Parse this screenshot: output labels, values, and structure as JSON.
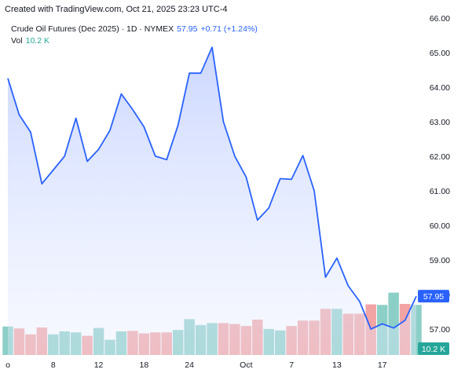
{
  "header": {
    "created_with": "Created with TradingView.com, Oct 21, 2025 23:23 UTC-4"
  },
  "legend": {
    "symbol": "Crude Oil Futures (Dec 2025) · 1D · NYMEX",
    "last": "57.95",
    "change": "+0.71 (+1.24%)",
    "vol_label": "Vol",
    "vol_value": "10.2 K"
  },
  "badges": {
    "price": "57.95",
    "volume": "10.2 K"
  },
  "colors": {
    "line": "#2962ff",
    "area_top": "#c9d5ff",
    "vol_up": "#8ccfc7",
    "vol_down": "#f2a3a3",
    "price_badge": "#2962ff",
    "vol_badge": "#26a69a"
  },
  "chart_data": {
    "type": "area",
    "y_axis": {
      "ticks": [
        "66.00",
        "65.00",
        "64.00",
        "63.00",
        "62.00",
        "61.00",
        "60.00",
        "59.00",
        "58.00",
        "57.00"
      ],
      "ylim": [
        56.25,
        66.2
      ]
    },
    "x_axis": {
      "ticks": [
        {
          "label": "o",
          "index": 0
        },
        {
          "label": "8",
          "index": 4
        },
        {
          "label": "12",
          "index": 8
        },
        {
          "label": "18",
          "index": 12
        },
        {
          "label": "24",
          "index": 16
        },
        {
          "label": "Oct",
          "index": 21
        },
        {
          "label": "7",
          "index": 25
        },
        {
          "label": "13",
          "index": 29
        },
        {
          "label": "17",
          "index": 33
        }
      ]
    },
    "price": [
      64.25,
      63.2,
      62.7,
      61.2,
      61.6,
      62.0,
      63.1,
      61.85,
      62.2,
      62.75,
      63.8,
      63.35,
      62.85,
      62.0,
      61.9,
      62.9,
      64.4,
      64.4,
      65.15,
      63.0,
      62.0,
      61.4,
      60.15,
      60.5,
      61.35,
      61.33,
      62.02,
      61.0,
      58.5,
      59.05,
      58.25,
      57.8,
      57.0,
      57.15,
      57.03,
      57.25,
      57.95
    ],
    "volume": {
      "ylim": [
        0,
        16
      ],
      "values": [
        5.8,
        5.4,
        4.2,
        5.6,
        4.2,
        4.8,
        4.6,
        3.9,
        5.5,
        3.1,
        4.8,
        4.9,
        4.4,
        4.6,
        4.6,
        5.1,
        7.3,
        6.1,
        6.5,
        6.5,
        6.3,
        5.9,
        7.2,
        5.3,
        5.0,
        5.9,
        7.0,
        7.0,
        9.4,
        9.4,
        8.4,
        8.4,
        10.3,
        10.2,
        12.7,
        10.4,
        10.2
      ],
      "up": [
        true,
        false,
        false,
        false,
        true,
        true,
        true,
        false,
        true,
        true,
        true,
        false,
        false,
        false,
        false,
        true,
        true,
        true,
        true,
        false,
        false,
        false,
        false,
        true,
        true,
        false,
        false,
        false,
        false,
        true,
        false,
        false,
        false,
        true,
        true,
        false,
        true
      ]
    }
  }
}
